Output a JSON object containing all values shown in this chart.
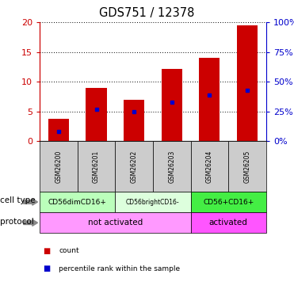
{
  "title": "GDS751 / 12378",
  "samples": [
    "GSM26200",
    "GSM26201",
    "GSM26202",
    "GSM26203",
    "GSM26204",
    "GSM26205"
  ],
  "counts": [
    3.8,
    9.0,
    7.0,
    12.2,
    14.0,
    19.5
  ],
  "percentile_values": [
    1.6,
    5.3,
    5.0,
    6.6,
    7.8,
    8.5
  ],
  "bar_color": "#cc0000",
  "pct_color": "#0000cc",
  "ylim_left": [
    0,
    20
  ],
  "ylim_right": [
    0,
    100
  ],
  "yticks_left": [
    0,
    5,
    10,
    15,
    20
  ],
  "ytick_labels_left": [
    "0",
    "5",
    "10",
    "15",
    "20"
  ],
  "yticks_right": [
    0,
    25,
    50,
    75,
    100
  ],
  "ytick_labels_right": [
    "0%",
    "25%",
    "50%",
    "75%",
    "100%"
  ],
  "cell_types": [
    {
      "label": "CD56dimCD16+",
      "start": 0,
      "end": 2,
      "color": "#bbffbb"
    },
    {
      "label": "CD56brightCD16-",
      "start": 2,
      "end": 4,
      "color": "#ddffdd"
    },
    {
      "label": "CD56+CD16+",
      "start": 4,
      "end": 6,
      "color": "#44ee44"
    }
  ],
  "protocols": [
    {
      "label": "not activated",
      "start": 0,
      "end": 4,
      "color": "#ff99ff"
    },
    {
      "label": "activated",
      "start": 4,
      "end": 6,
      "color": "#ff55ff"
    }
  ],
  "legend_items": [
    {
      "color": "#cc0000",
      "label": "count"
    },
    {
      "color": "#0000cc",
      "label": "percentile rank within the sample"
    }
  ],
  "bar_width": 0.55,
  "left_axis_color": "#cc0000",
  "right_axis_color": "#0000cc",
  "sample_bg": "#cccccc",
  "bg_color": "#ffffff"
}
